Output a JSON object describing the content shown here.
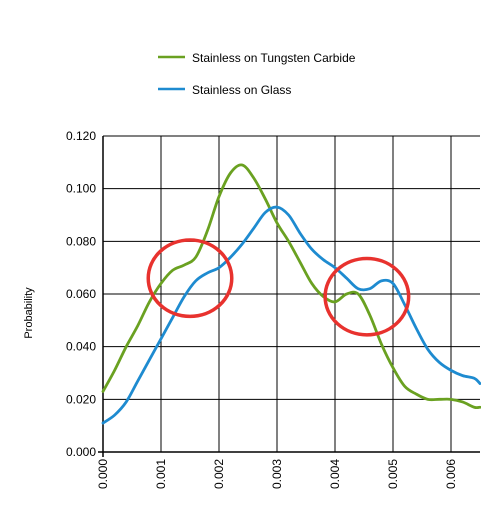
{
  "chart_data": {
    "type": "line",
    "title": "",
    "xlabel": "",
    "ylabel": "Probability",
    "xlim": [
      0,
      0.0065
    ],
    "ylim": [
      0,
      0.12
    ],
    "x_ticks": [
      "0.000",
      "0.001",
      "0.002",
      "0.003",
      "0.004",
      "0.005",
      "0.006"
    ],
    "y_ticks": [
      "0.000",
      "0.020",
      "0.040",
      "0.060",
      "0.080",
      "0.100",
      "0.120"
    ],
    "x_tick_values": [
      0,
      0.001,
      0.002,
      0.003,
      0.004,
      0.005,
      0.006
    ],
    "y_tick_values": [
      0,
      0.02,
      0.04,
      0.06,
      0.08,
      0.1,
      0.12
    ],
    "grid": true,
    "legend_position": "top",
    "series": [
      {
        "name": "Stainless on Tungsten Carbide",
        "color": "#6aa121",
        "x": [
          0,
          0.0002,
          0.0004,
          0.0006,
          0.0008,
          0.001,
          0.0012,
          0.0014,
          0.0016,
          0.0018,
          0.002,
          0.0022,
          0.0024,
          0.0026,
          0.0028,
          0.003,
          0.0032,
          0.0034,
          0.0036,
          0.0038,
          0.004,
          0.0042,
          0.0044,
          0.0046,
          0.0048,
          0.005,
          0.0052,
          0.0054,
          0.0056,
          0.0058,
          0.006,
          0.0062,
          0.0064,
          0.0065
        ],
        "y": [
          0.023,
          0.031,
          0.04,
          0.048,
          0.057,
          0.064,
          0.069,
          0.071,
          0.074,
          0.084,
          0.097,
          0.106,
          0.109,
          0.104,
          0.096,
          0.087,
          0.08,
          0.072,
          0.064,
          0.059,
          0.057,
          0.06,
          0.06,
          0.052,
          0.041,
          0.032,
          0.025,
          0.022,
          0.02,
          0.02,
          0.02,
          0.019,
          0.017,
          0.017
        ]
      },
      {
        "name": "Stainless on Glass",
        "color": "#1e8bd0",
        "x": [
          0,
          0.0002,
          0.0004,
          0.0006,
          0.0008,
          0.001,
          0.0012,
          0.0014,
          0.0016,
          0.0018,
          0.002,
          0.0022,
          0.0024,
          0.0026,
          0.0028,
          0.003,
          0.0032,
          0.0034,
          0.0036,
          0.0038,
          0.004,
          0.0042,
          0.0044,
          0.0046,
          0.0048,
          0.005,
          0.0052,
          0.0054,
          0.0056,
          0.0058,
          0.006,
          0.0062,
          0.0064,
          0.0065
        ],
        "y": [
          0.011,
          0.014,
          0.019,
          0.027,
          0.035,
          0.043,
          0.051,
          0.059,
          0.065,
          0.068,
          0.07,
          0.074,
          0.079,
          0.085,
          0.091,
          0.093,
          0.09,
          0.083,
          0.077,
          0.073,
          0.07,
          0.066,
          0.062,
          0.062,
          0.065,
          0.064,
          0.056,
          0.047,
          0.039,
          0.034,
          0.031,
          0.029,
          0.028,
          0.026
        ]
      }
    ],
    "annotations": [
      {
        "type": "circle",
        "color": "#e8322e",
        "cx": 0.0015,
        "cy": 0.066,
        "rx": 0.00072,
        "ry": 0.0145
      },
      {
        "type": "circle",
        "color": "#e8322e",
        "cx": 0.00455,
        "cy": 0.059,
        "rx": 0.00072,
        "ry": 0.0145
      }
    ]
  }
}
